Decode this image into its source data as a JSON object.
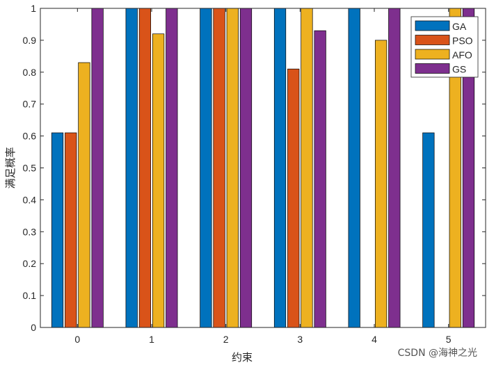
{
  "chart_data": {
    "type": "bar",
    "categories": [
      "0",
      "1",
      "2",
      "3",
      "4",
      "5"
    ],
    "series": [
      {
        "name": "GA",
        "color": "#0072BD",
        "values": [
          0.61,
          1,
          1,
          1,
          1,
          0.61
        ]
      },
      {
        "name": "PSO",
        "color": "#D95319",
        "values": [
          0.61,
          1,
          1,
          0.81,
          0,
          0
        ]
      },
      {
        "name": "AFO",
        "color": "#EDB120",
        "values": [
          0.83,
          0.92,
          1,
          1,
          0.9,
          1
        ]
      },
      {
        "name": "GS",
        "color": "#7E2F8E",
        "values": [
          1,
          1,
          1,
          0.93,
          1,
          1
        ]
      }
    ],
    "xlabel": "约束",
    "ylabel": "满足概率",
    "ylim": [
      0,
      1
    ],
    "xlim": [
      -0.5,
      5.5
    ],
    "yticks": [
      "0",
      "0.1",
      "0.2",
      "0.3",
      "0.4",
      "0.5",
      "0.6",
      "0.7",
      "0.8",
      "0.9",
      "1"
    ],
    "legend_position": "top-right"
  },
  "watermark": "CSDN @海神之光"
}
